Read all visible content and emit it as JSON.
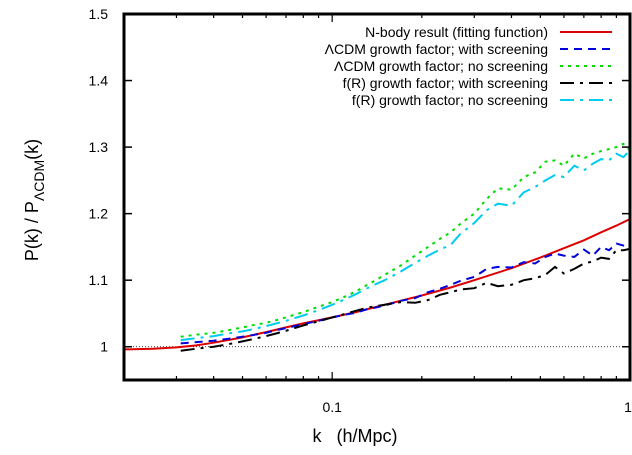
{
  "chart_data": {
    "type": "line",
    "xlabel": "k   (h/Mpc)",
    "ylabel": "P(k) / P",
    "ylabel_subscript": "ΛCDM",
    "ylabel_suffix": "(k)",
    "xscale": "log",
    "xlim": [
      0.02,
      1.0
    ],
    "ylim": [
      0.95,
      1.5
    ],
    "x_ticks": [
      {
        "value": 0.1,
        "label": "0.1"
      },
      {
        "value": 1.0,
        "label": "1"
      }
    ],
    "y_ticks": [
      {
        "value": 1.0,
        "label": "1"
      },
      {
        "value": 1.1,
        "label": "1.1"
      },
      {
        "value": 1.2,
        "label": "1.2"
      },
      {
        "value": 1.3,
        "label": "1.3"
      },
      {
        "value": 1.4,
        "label": "1.4"
      },
      {
        "value": 1.5,
        "label": "1.5"
      }
    ],
    "reference_line": {
      "y": 1.0,
      "style": "dotted"
    },
    "grid": false,
    "legend_position": "top-right",
    "series": [
      {
        "name": "N-body result (fitting function)",
        "color": "#dd0000",
        "dash": "solid",
        "x": [
          0.02,
          0.025,
          0.03,
          0.035,
          0.04,
          0.05,
          0.06,
          0.07,
          0.08,
          0.1,
          0.12,
          0.15,
          0.2,
          0.25,
          0.3,
          0.4,
          0.5,
          0.6,
          0.7,
          0.8,
          0.9,
          1.0
        ],
        "y": [
          0.996,
          0.997,
          0.999,
          1.002,
          1.006,
          1.014,
          1.022,
          1.029,
          1.035,
          1.044,
          1.052,
          1.063,
          1.077,
          1.089,
          1.1,
          1.118,
          1.134,
          1.148,
          1.16,
          1.172,
          1.182,
          1.192
        ]
      },
      {
        "name": "ΛCDM growth factor; with screening",
        "color": "#0000dd",
        "dash": "dashed",
        "x": [
          0.031,
          0.035,
          0.04,
          0.045,
          0.05,
          0.055,
          0.06,
          0.065,
          0.07,
          0.08,
          0.09,
          0.1,
          0.11,
          0.12,
          0.13,
          0.14,
          0.15,
          0.17,
          0.19,
          0.21,
          0.23,
          0.25,
          0.27,
          0.3,
          0.33,
          0.36,
          0.4,
          0.44,
          0.48,
          0.52,
          0.56,
          0.6,
          0.65,
          0.7,
          0.75,
          0.8,
          0.85,
          0.9,
          0.95,
          1.0
        ],
        "y": [
          1.005,
          1.007,
          1.009,
          1.012,
          1.015,
          1.018,
          1.021,
          1.025,
          1.028,
          1.034,
          1.039,
          1.044,
          1.048,
          1.051,
          1.056,
          1.059,
          1.062,
          1.069,
          1.073,
          1.082,
          1.087,
          1.093,
          1.099,
          1.105,
          1.117,
          1.12,
          1.119,
          1.127,
          1.125,
          1.135,
          1.14,
          1.137,
          1.135,
          1.146,
          1.137,
          1.15,
          1.145,
          1.155,
          1.152,
          1.147
        ]
      },
      {
        "name": "ΛCDM growth factor;   no screening",
        "color": "#00dd00",
        "dash": "dotted",
        "x": [
          0.031,
          0.035,
          0.04,
          0.045,
          0.05,
          0.055,
          0.06,
          0.065,
          0.07,
          0.08,
          0.09,
          0.1,
          0.11,
          0.12,
          0.13,
          0.14,
          0.15,
          0.17,
          0.19,
          0.21,
          0.23,
          0.25,
          0.27,
          0.3,
          0.33,
          0.36,
          0.4,
          0.44,
          0.48,
          0.52,
          0.56,
          0.6,
          0.65,
          0.7,
          0.75,
          0.8,
          0.85,
          0.9,
          0.95,
          1.0
        ],
        "y": [
          1.015,
          1.018,
          1.021,
          1.025,
          1.029,
          1.033,
          1.036,
          1.04,
          1.044,
          1.052,
          1.06,
          1.067,
          1.075,
          1.083,
          1.092,
          1.1,
          1.108,
          1.122,
          1.137,
          1.15,
          1.162,
          1.172,
          1.185,
          1.2,
          1.222,
          1.238,
          1.236,
          1.255,
          1.262,
          1.278,
          1.28,
          1.272,
          1.29,
          1.283,
          1.29,
          1.294,
          1.297,
          1.3,
          1.305,
          1.295
        ]
      },
      {
        "name": "f(R) growth factor; with screening",
        "color": "#000000",
        "dash": "dash-dot",
        "x": [
          0.031,
          0.035,
          0.04,
          0.045,
          0.05,
          0.055,
          0.06,
          0.065,
          0.07,
          0.08,
          0.09,
          0.1,
          0.11,
          0.12,
          0.13,
          0.14,
          0.15,
          0.17,
          0.19,
          0.21,
          0.23,
          0.25,
          0.27,
          0.3,
          0.33,
          0.36,
          0.4,
          0.44,
          0.48,
          0.52,
          0.56,
          0.6,
          0.65,
          0.7,
          0.75,
          0.8,
          0.85,
          0.9,
          0.95,
          1.0
        ],
        "y": [
          0.994,
          0.997,
          1.0,
          1.004,
          1.008,
          1.012,
          1.016,
          1.02,
          1.024,
          1.032,
          1.038,
          1.044,
          1.049,
          1.054,
          1.058,
          1.061,
          1.063,
          1.067,
          1.066,
          1.07,
          1.078,
          1.082,
          1.086,
          1.088,
          1.096,
          1.091,
          1.093,
          1.1,
          1.103,
          1.108,
          1.12,
          1.11,
          1.117,
          1.125,
          1.128,
          1.134,
          1.132,
          1.145,
          1.145,
          1.147
        ]
      },
      {
        "name": "f(R) growth factor;   no screening",
        "color": "#00ccee",
        "dash": "dash-dot",
        "x": [
          0.031,
          0.035,
          0.04,
          0.045,
          0.05,
          0.055,
          0.06,
          0.065,
          0.07,
          0.08,
          0.09,
          0.1,
          0.11,
          0.12,
          0.13,
          0.14,
          0.15,
          0.17,
          0.19,
          0.21,
          0.23,
          0.25,
          0.27,
          0.3,
          0.33,
          0.36,
          0.4,
          0.44,
          0.48,
          0.52,
          0.56,
          0.6,
          0.65,
          0.7,
          0.75,
          0.8,
          0.85,
          0.9,
          0.95,
          1.0
        ],
        "y": [
          1.01,
          1.013,
          1.016,
          1.02,
          1.023,
          1.027,
          1.031,
          1.035,
          1.039,
          1.047,
          1.055,
          1.063,
          1.071,
          1.079,
          1.087,
          1.094,
          1.1,
          1.113,
          1.126,
          1.137,
          1.146,
          1.153,
          1.17,
          1.186,
          1.205,
          1.215,
          1.212,
          1.232,
          1.24,
          1.25,
          1.258,
          1.255,
          1.272,
          1.265,
          1.275,
          1.282,
          1.28,
          1.29,
          1.285,
          1.295
        ]
      }
    ]
  }
}
